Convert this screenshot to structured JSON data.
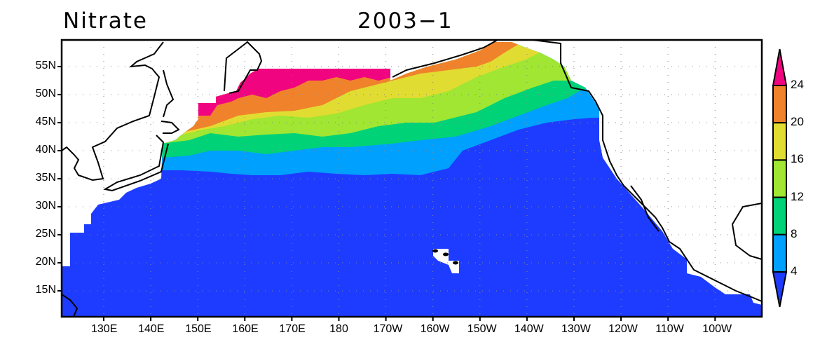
{
  "title_left": "Nitrate",
  "title_center": "2003−1",
  "map_data": {
    "variable": "Nitrate",
    "time": "2003-1",
    "lat_ticks": [
      "55N",
      "50N",
      "45N",
      "40N",
      "35N",
      "30N",
      "25N",
      "20N",
      "15N"
    ],
    "lon_ticks": [
      "130E",
      "140E",
      "150E",
      "160E",
      "170E",
      "180",
      "170W",
      "160W",
      "150W",
      "140W",
      "130W",
      "120W",
      "110W",
      "100W"
    ],
    "colorbar": {
      "levels": [
        "4",
        "8",
        "12",
        "16",
        "20",
        "24"
      ],
      "colors": [
        "#1e3cff",
        "#00a0ff",
        "#00d278",
        "#a0e632",
        "#e1dc31",
        "#f0822c",
        "#f0047f"
      ]
    },
    "grid": "dotted"
  }
}
